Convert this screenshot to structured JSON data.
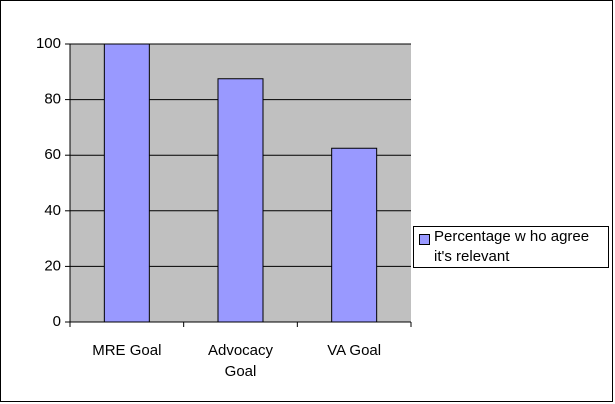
{
  "chart_data": {
    "type": "bar",
    "categories": [
      "MRE Goal",
      "Advocacy Goal",
      "VA Goal"
    ],
    "series": [
      {
        "name": "Percentage w ho agree it's relevant",
        "color": "#9999ff",
        "values": [
          100,
          87.5,
          62.5
        ]
      }
    ],
    "ylim": [
      0,
      100
    ],
    "yticks": [
      0,
      20,
      40,
      60,
      80,
      100
    ],
    "grid": true,
    "legend": "right"
  }
}
